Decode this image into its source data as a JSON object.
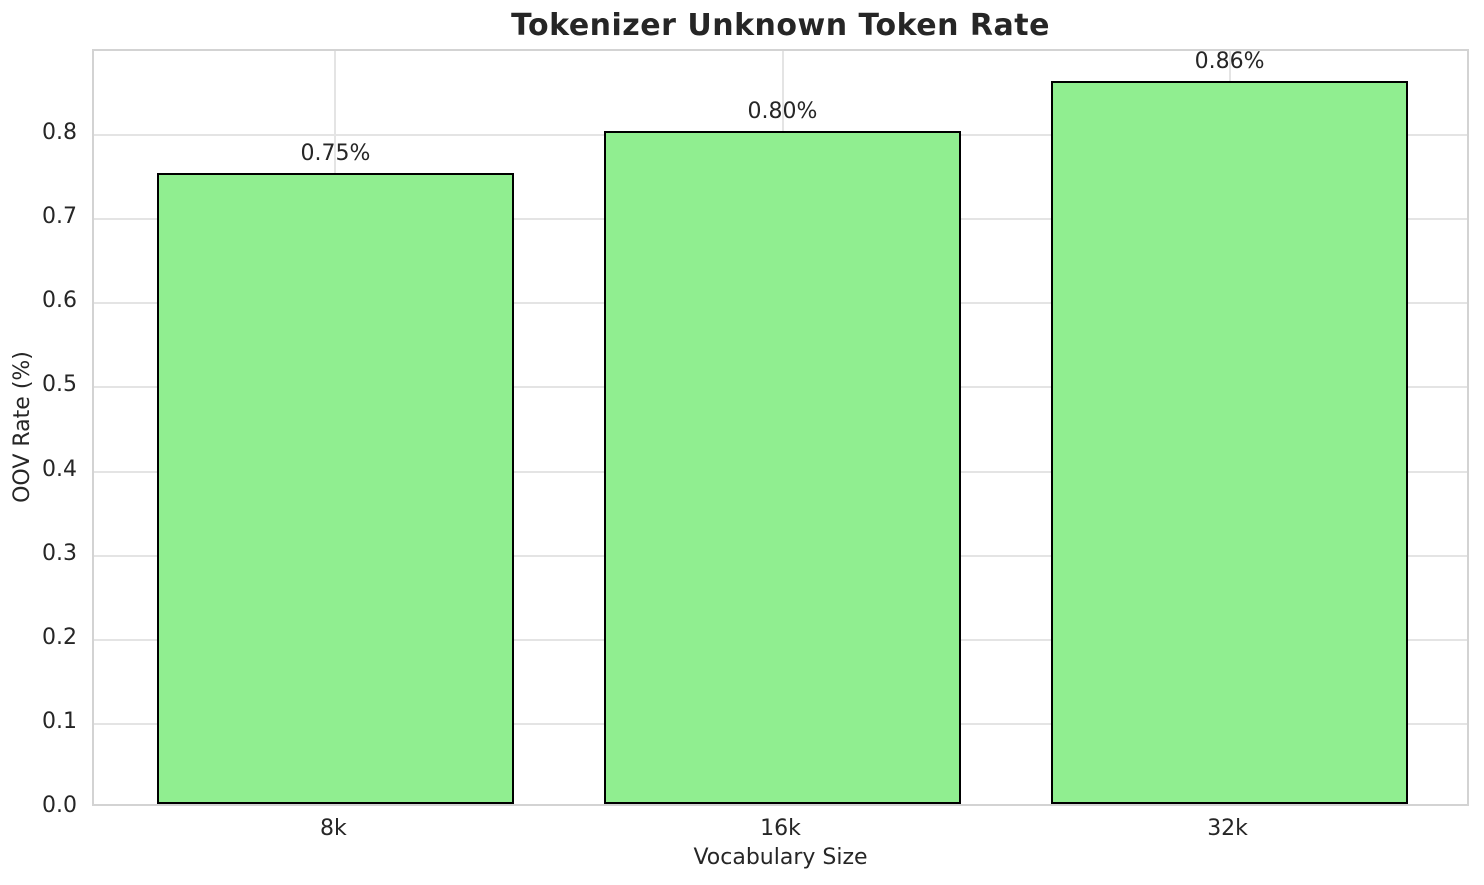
{
  "chart_data": {
    "type": "bar",
    "title": "Tokenizer Unknown Token Rate",
    "xlabel": "Vocabulary Size",
    "ylabel": "OOV Rate (%)",
    "categories": [
      "8k",
      "16k",
      "32k"
    ],
    "values": [
      0.75,
      0.8,
      0.86
    ],
    "bar_labels": [
      "0.75%",
      "0.80%",
      "0.86%"
    ],
    "ylim": [
      0,
      0.9
    ],
    "yticks": [
      0.0,
      0.1,
      0.2,
      0.3,
      0.4,
      0.5,
      0.6,
      0.7,
      0.8
    ],
    "ytick_labels": [
      "0.0",
      "0.1",
      "0.2",
      "0.3",
      "0.4",
      "0.5",
      "0.6",
      "0.7",
      "0.8"
    ],
    "grid": true,
    "legend": null,
    "bar_color": "#90EE90",
    "bar_edge_color": "#000000",
    "grid_color": "#e4e4e4",
    "frame_color": "#d3d3d3",
    "text_color": "#262626",
    "background_color": "#ffffff"
  }
}
